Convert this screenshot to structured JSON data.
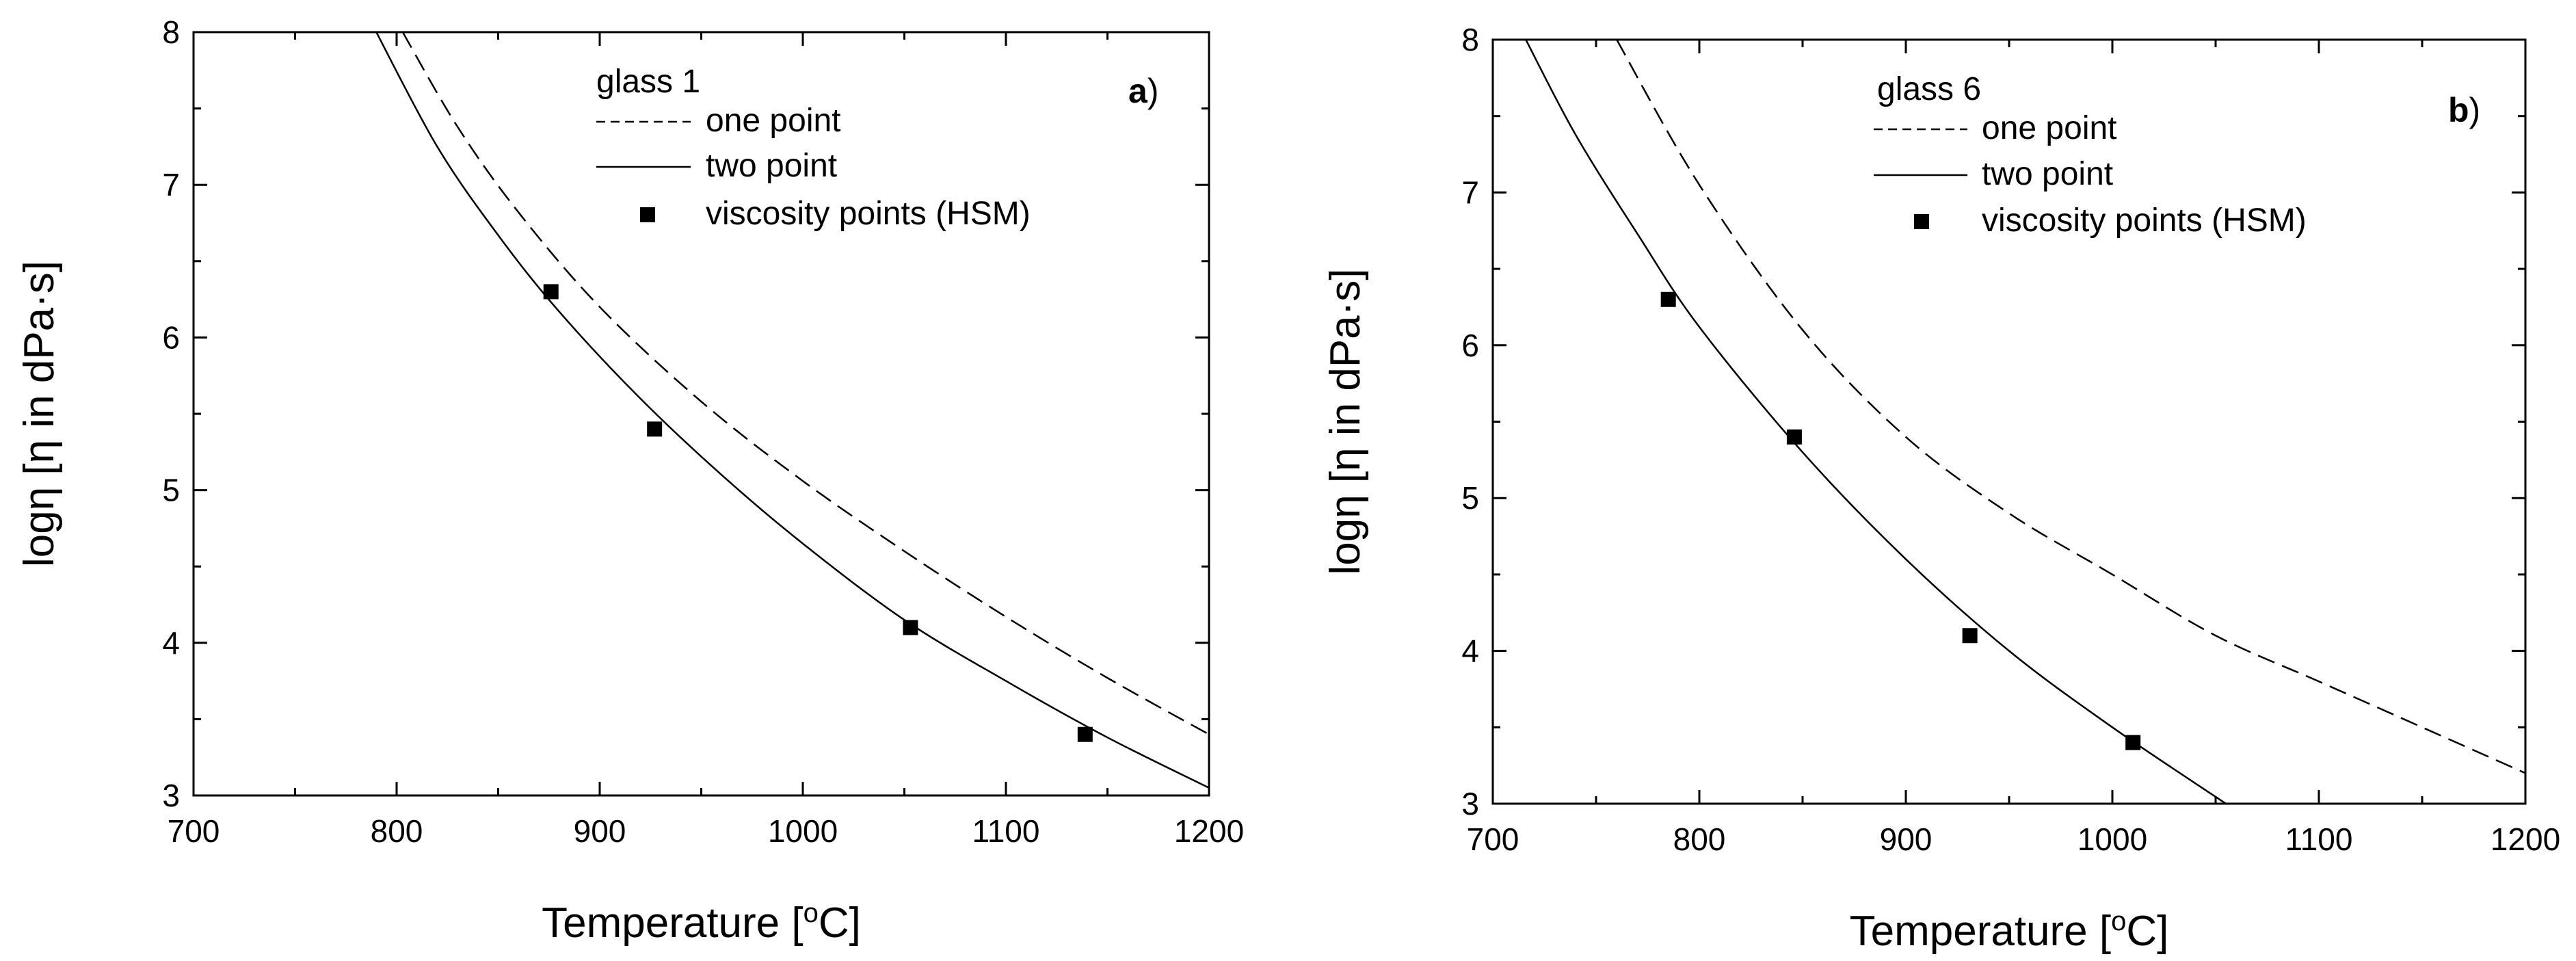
{
  "chart_data": [
    {
      "type": "line",
      "panel_label": "a",
      "legend_title": "glass 1",
      "xlabel": "Temperature [",
      "xlabel_unit_sup": "o",
      "xlabel_unit_tail": "C]",
      "ylabel": "logη [η in dPa·s]",
      "xlim": [
        700,
        1200
      ],
      "ylim": [
        3,
        8
      ],
      "x_ticks": [
        700,
        800,
        900,
        1000,
        1100,
        1200
      ],
      "y_ticks": [
        3,
        4,
        5,
        6,
        7,
        8
      ],
      "series": [
        {
          "name": "one point",
          "style": "dashed",
          "x": [
            803,
            830,
            860,
            900,
            950,
            1000,
            1050,
            1100,
            1150,
            1200
          ],
          "y": [
            8.0,
            7.38,
            6.82,
            6.2,
            5.58,
            5.06,
            4.6,
            4.17,
            3.77,
            3.4
          ]
        },
        {
          "name": "two point",
          "style": "solid",
          "x": [
            790,
            820,
            850,
            880,
            920,
            960,
            1000,
            1050,
            1100,
            1150,
            1200
          ],
          "y": [
            8.0,
            7.25,
            6.67,
            6.17,
            5.6,
            5.1,
            4.65,
            4.15,
            3.75,
            3.38,
            3.05
          ]
        },
        {
          "name": "viscosity points (HSM)",
          "style": "marker",
          "x": [
            876,
            927,
            1053,
            1139
          ],
          "y": [
            6.3,
            5.4,
            4.1,
            3.4
          ]
        }
      ]
    },
    {
      "type": "line",
      "panel_label": "b",
      "legend_title": "glass 6",
      "xlabel": "Temperature [",
      "xlabel_unit_sup": "o",
      "xlabel_unit_tail": "C]",
      "ylabel": "logη [η in dPa·s]",
      "xlim": [
        700,
        1200
      ],
      "ylim": [
        3,
        8
      ],
      "x_ticks": [
        700,
        800,
        900,
        1000,
        1100,
        1200
      ],
      "y_ticks": [
        3,
        4,
        5,
        6,
        7,
        8
      ],
      "series": [
        {
          "name": "one point",
          "style": "dashed",
          "x": [
            760,
            800,
            850,
            900,
            950,
            1000,
            1050,
            1100,
            1150,
            1200
          ],
          "y": [
            8.0,
            7.05,
            6.1,
            5.4,
            4.9,
            4.5,
            4.1,
            3.8,
            3.5,
            3.2
          ]
        },
        {
          "name": "two point",
          "style": "solid",
          "x": [
            716,
            740,
            770,
            800,
            850,
            900,
            950,
            1000,
            1055
          ],
          "y": [
            8.0,
            7.38,
            6.73,
            6.12,
            5.3,
            4.6,
            4.0,
            3.5,
            3.0
          ]
        },
        {
          "name": "viscosity points (HSM)",
          "style": "marker",
          "x": [
            785,
            846,
            931,
            1010
          ],
          "y": [
            6.3,
            5.4,
            4.1,
            3.4
          ]
        }
      ]
    }
  ]
}
